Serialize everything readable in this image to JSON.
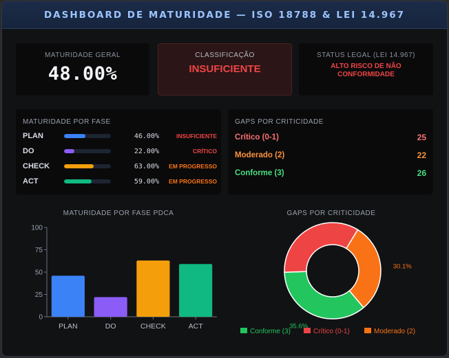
{
  "header": {
    "title": "DASHBOARD DE MATURIDADE — ISO 18788 & LEI 14.967"
  },
  "kpis": {
    "maturity": {
      "label": "MATURIDADE GERAL",
      "value": "48.00%"
    },
    "classification": {
      "label": "CLASSIFICAÇÃO",
      "value": "INSUFICIENTE"
    },
    "legal": {
      "label": "STATUS LEGAL (LEI 14.967)",
      "line1": "ALTO RISCO DE NÃO",
      "line2": "CONFORMIDADE"
    }
  },
  "phase_panel": {
    "title": "MATURIDADE POR FASE",
    "rows": [
      {
        "name": "PLAN",
        "pct_text": "46.00%",
        "fraction": 0.46,
        "status": "INSUFICIENTE",
        "bar_color": "#3b82f6",
        "status_color": "#ef4444"
      },
      {
        "name": "DO",
        "pct_text": "22.00%",
        "fraction": 0.22,
        "status": "CRÍTICO",
        "bar_color": "#8b5cf6",
        "status_color": "#ef4444"
      },
      {
        "name": "CHECK",
        "pct_text": "63.00%",
        "fraction": 0.63,
        "status": "EM PROGRESSO",
        "bar_color": "#f59e0b",
        "status_color": "#f97316"
      },
      {
        "name": "ACT",
        "pct_text": "59.00%",
        "fraction": 0.59,
        "status": "EM PROGRESSO",
        "bar_color": "#10b981",
        "status_color": "#f97316"
      }
    ]
  },
  "gaps_panel": {
    "title": "GAPS POR CRITICIDADE",
    "rows": [
      {
        "label": "Crítico (0-1)",
        "count": "25",
        "label_color": "#f87171",
        "count_color": "#f87171"
      },
      {
        "label": "Moderado (2)",
        "count": "22",
        "label_color": "#fb923c",
        "count_color": "#fb923c"
      },
      {
        "label": "Conforme (3)",
        "count": "26",
        "label_color": "#4ade80",
        "count_color": "#4ade80"
      }
    ]
  },
  "chart_data": [
    {
      "type": "bar",
      "title": "MATURIDADE POR FASE PDCA",
      "categories": [
        "PLAN",
        "DO",
        "CHECK",
        "ACT"
      ],
      "values": [
        46,
        22,
        63,
        59
      ],
      "colors": [
        "#3b82f6",
        "#8b5cf6",
        "#f59e0b",
        "#10b981"
      ],
      "ylim": [
        0,
        100
      ],
      "yticks": [
        0,
        25,
        50,
        75,
        100
      ],
      "grid": false
    },
    {
      "type": "pie",
      "title": "GAPS POR CRITICIDADE",
      "donut": true,
      "labels": [
        "Conforme (3)",
        "Crítico (0-1)",
        "Moderado (2)"
      ],
      "values": [
        26,
        25,
        22
      ],
      "colors": [
        "#22c55e",
        "#ef4444",
        "#f97316"
      ],
      "data_labels": [
        {
          "text": "30.1%",
          "slice": "Moderado (2)",
          "color": "#f97316"
        },
        {
          "text": "35.6%",
          "slice": "Conforme (3)",
          "color": "#22c55e"
        }
      ],
      "legend_placement": "bottom"
    }
  ]
}
